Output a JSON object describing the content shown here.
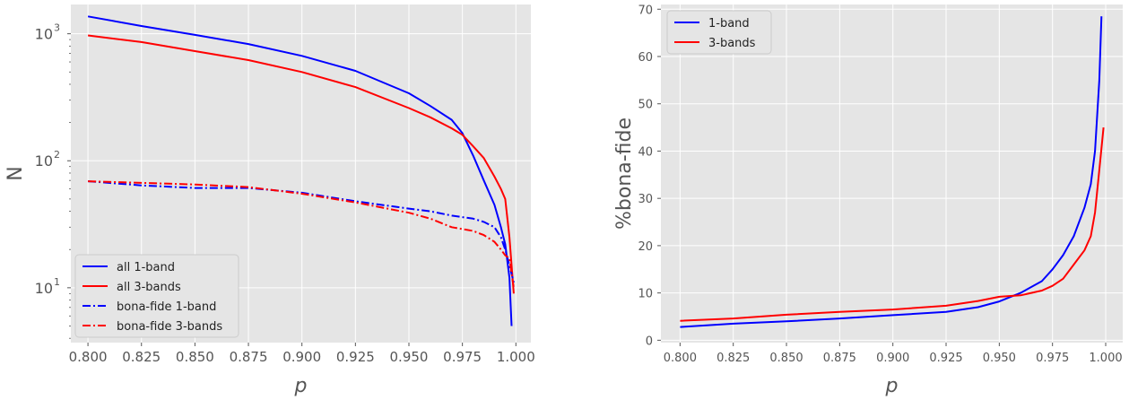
{
  "colors": {
    "plot_bg": "#E5E5E5",
    "grid": "#FFFFFF",
    "tick": "#555555",
    "blue": "#0000FF",
    "red": "#FF0000"
  },
  "chart_data": [
    {
      "type": "line",
      "xlabel": "p",
      "ylabel": "N",
      "yscale": "log",
      "xlim": [
        0.792,
        1.007
      ],
      "ylim": [
        3.7,
        1700
      ],
      "xticks": [
        "0.800",
        "0.825",
        "0.850",
        "0.875",
        "0.900",
        "0.925",
        "0.950",
        "0.975",
        "1.000"
      ],
      "yticks": [
        {
          "value": 10,
          "label": "10",
          "exp": "1"
        },
        {
          "value": 100,
          "label": "10",
          "exp": "2"
        },
        {
          "value": 1000,
          "label": "10",
          "exp": "3"
        }
      ],
      "grid": true,
      "legend_position": "bottom-left",
      "series": [
        {
          "name": "all 1-band",
          "color": "#0000FF",
          "dash": "solid",
          "x": [
            0.8,
            0.825,
            0.85,
            0.875,
            0.9,
            0.925,
            0.95,
            0.96,
            0.97,
            0.975,
            0.98,
            0.985,
            0.99,
            0.993,
            0.995,
            0.997,
            0.998
          ],
          "y": [
            1370,
            1150,
            980,
            830,
            670,
            510,
            340,
            270,
            210,
            165,
            110,
            70,
            45,
            30,
            22,
            12,
            5
          ]
        },
        {
          "name": "all 3-bands",
          "color": "#FF0000",
          "dash": "solid",
          "x": [
            0.8,
            0.825,
            0.85,
            0.875,
            0.9,
            0.925,
            0.95,
            0.96,
            0.97,
            0.975,
            0.98,
            0.985,
            0.99,
            0.993,
            0.995,
            0.997,
            0.999
          ],
          "y": [
            970,
            860,
            730,
            620,
            500,
            380,
            260,
            220,
            180,
            160,
            130,
            105,
            75,
            60,
            50,
            25,
            9
          ]
        },
        {
          "name": "bona-fide 1-band",
          "color": "#0000FF",
          "dash": "dashdot",
          "x": [
            0.8,
            0.825,
            0.85,
            0.875,
            0.9,
            0.925,
            0.95,
            0.96,
            0.97,
            0.98,
            0.985,
            0.99,
            0.993,
            0.995,
            0.997,
            0.999
          ],
          "y": [
            69,
            64,
            61,
            61,
            56,
            48,
            42,
            40,
            37,
            35,
            33,
            30,
            25,
            20,
            15,
            11
          ]
        },
        {
          "name": "bona-fide 3-bands",
          "color": "#FF0000",
          "dash": "dashdot",
          "x": [
            0.8,
            0.825,
            0.85,
            0.875,
            0.9,
            0.925,
            0.95,
            0.96,
            0.97,
            0.98,
            0.985,
            0.99,
            0.993,
            0.995,
            0.997,
            0.999
          ],
          "y": [
            69,
            67,
            65,
            62,
            55,
            47,
            39,
            35,
            30,
            28,
            26,
            23,
            20,
            18,
            17,
            10
          ]
        }
      ]
    },
    {
      "type": "line",
      "xlabel": "p",
      "ylabel": "%bona-fide",
      "yscale": "linear",
      "xlim": [
        0.791,
        1.008
      ],
      "ylim": [
        -0.5,
        71
      ],
      "xticks": [
        "0.800",
        "0.825",
        "0.850",
        "0.875",
        "0.900",
        "0.925",
        "0.950",
        "0.975",
        "1.000"
      ],
      "yticks": [
        "0",
        "10",
        "20",
        "30",
        "40",
        "50",
        "60",
        "70"
      ],
      "grid": true,
      "legend_position": "upper-left",
      "series": [
        {
          "name": "1-band",
          "color": "#0000FF",
          "dash": "solid",
          "x": [
            0.8,
            0.825,
            0.85,
            0.875,
            0.9,
            0.925,
            0.94,
            0.95,
            0.96,
            0.97,
            0.975,
            0.98,
            0.985,
            0.99,
            0.993,
            0.995,
            0.997,
            0.998
          ],
          "y": [
            2.8,
            3.5,
            4.0,
            4.6,
            5.3,
            6.0,
            7.0,
            8.2,
            10.0,
            12.5,
            15.0,
            18.0,
            22.0,
            28.0,
            33.0,
            40.0,
            55.0,
            68.5
          ]
        },
        {
          "name": "3-bands",
          "color": "#FF0000",
          "dash": "solid",
          "x": [
            0.8,
            0.825,
            0.85,
            0.875,
            0.9,
            0.925,
            0.94,
            0.95,
            0.96,
            0.97,
            0.975,
            0.98,
            0.985,
            0.99,
            0.993,
            0.995,
            0.997,
            0.999
          ],
          "y": [
            4.1,
            4.6,
            5.4,
            6.0,
            6.5,
            7.3,
            8.3,
            9.2,
            9.5,
            10.5,
            11.5,
            13.0,
            16.0,
            19.0,
            22.0,
            27.0,
            36.0,
            45.0
          ]
        }
      ]
    }
  ]
}
